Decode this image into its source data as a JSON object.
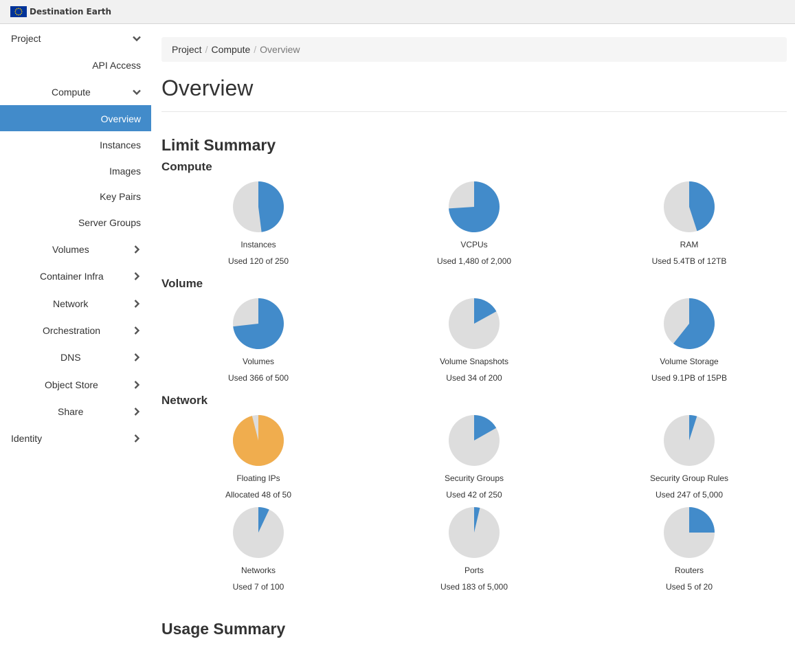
{
  "brand": {
    "name": "Destination Earth"
  },
  "colors": {
    "used": "#428bca",
    "free": "#dddddd",
    "warning": "#f0ad4e",
    "active": "#428bca"
  },
  "sidebar": {
    "project": "Project",
    "api_access": "API Access",
    "compute": "Compute",
    "compute_items": [
      "Overview",
      "Instances",
      "Images",
      "Key Pairs",
      "Server Groups"
    ],
    "groups": [
      "Volumes",
      "Container Infra",
      "Network",
      "Orchestration",
      "DNS",
      "Object Store",
      "Share"
    ],
    "identity": "Identity"
  },
  "breadcrumb": {
    "items": [
      "Project",
      "Compute",
      "Overview"
    ]
  },
  "page": {
    "title": "Overview"
  },
  "limit_summary": {
    "title": "Limit Summary",
    "groups": [
      {
        "title": "Compute",
        "charts": [
          {
            "label": "Instances",
            "used_text": "Used 120 of 250",
            "used": 120,
            "total": 250
          },
          {
            "label": "VCPUs",
            "used_text": "Used 1,480 of 2,000",
            "used": 1480,
            "total": 2000
          },
          {
            "label": "RAM",
            "used_text": "Used 5.4TB of 12TB",
            "used": 5.4,
            "total": 12
          }
        ]
      },
      {
        "title": "Volume",
        "charts": [
          {
            "label": "Volumes",
            "used_text": "Used 366 of 500",
            "used": 366,
            "total": 500
          },
          {
            "label": "Volume Snapshots",
            "used_text": "Used 34 of 200",
            "used": 34,
            "total": 200
          },
          {
            "label": "Volume Storage",
            "used_text": "Used 9.1PB of 15PB",
            "used": 9.1,
            "total": 15
          }
        ]
      },
      {
        "title": "Network",
        "charts": [
          {
            "label": "Floating IPs",
            "used_text": "Allocated 48 of 50",
            "used": 48,
            "total": 50,
            "warning": true
          },
          {
            "label": "Security Groups",
            "used_text": "Used 42 of 250",
            "used": 42,
            "total": 250
          },
          {
            "label": "Security Group Rules",
            "used_text": "Used 247 of 5,000",
            "used": 247,
            "total": 5000
          },
          {
            "label": "Networks",
            "used_text": "Used 7 of 100",
            "used": 7,
            "total": 100
          },
          {
            "label": "Ports",
            "used_text": "Used 183 of 5,000",
            "used": 183,
            "total": 5000
          },
          {
            "label": "Routers",
            "used_text": "Used 5 of 20",
            "used": 5,
            "total": 20
          }
        ]
      }
    ]
  },
  "usage_summary": {
    "title": "Usage Summary"
  }
}
